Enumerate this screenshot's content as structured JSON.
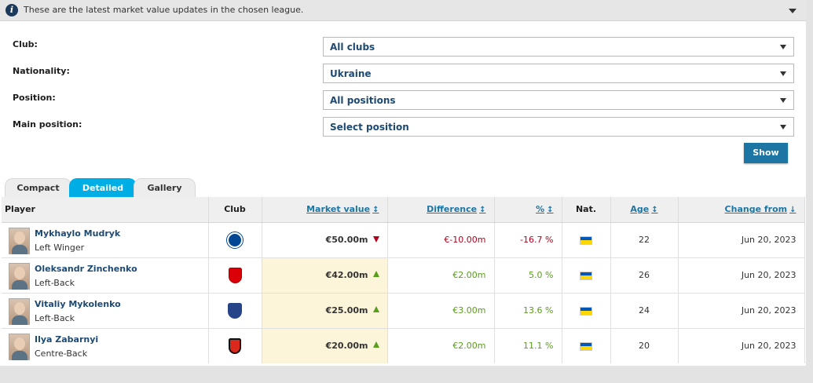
{
  "info": {
    "text": "These are the latest market value updates in the chosen league."
  },
  "filters": {
    "club_label": "Club:",
    "club_value": "All clubs",
    "nationality_label": "Nationality:",
    "nationality_value": "Ukraine",
    "position_label": "Position:",
    "position_value": "All positions",
    "main_position_label": "Main position:",
    "main_position_value": "Select position",
    "show_label": "Show"
  },
  "tabs": [
    {
      "label": "Compact",
      "active": false
    },
    {
      "label": "Detailed",
      "active": true
    },
    {
      "label": "Gallery",
      "active": false
    }
  ],
  "table": {
    "headers": {
      "player": "Player",
      "club": "Club",
      "market_value": "Market value",
      "difference": "Difference",
      "percent": "%",
      "nat": "Nat.",
      "age": "Age",
      "change_from": "Change from"
    },
    "rows": [
      {
        "name": "Mykhaylo Mudryk",
        "position": "Left Winger",
        "club_icon": "chelsea-crest-icon",
        "market_value": "€50.00m",
        "trend": "down",
        "difference": "€-10.00m",
        "percent": "-16.7 %",
        "nationality_icon": "ukraine-flag-icon",
        "age": "22",
        "change_from": "Jun 20, 2023"
      },
      {
        "name": "Oleksandr Zinchenko",
        "position": "Left-Back",
        "club_icon": "arsenal-crest-icon",
        "market_value": "€42.00m",
        "trend": "up",
        "difference": "€2.00m",
        "percent": "5.0 %",
        "nationality_icon": "ukraine-flag-icon",
        "age": "26",
        "change_from": "Jun 20, 2023"
      },
      {
        "name": "Vitaliy Mykolenko",
        "position": "Left-Back",
        "club_icon": "everton-crest-icon",
        "market_value": "€25.00m",
        "trend": "up",
        "difference": "€3.00m",
        "percent": "13.6 %",
        "nationality_icon": "ukraine-flag-icon",
        "age": "24",
        "change_from": "Jun 20, 2023"
      },
      {
        "name": "Ilya Zabarnyi",
        "position": "Centre-Back",
        "club_icon": "bournemouth-crest-icon",
        "market_value": "€20.00m",
        "trend": "up",
        "difference": "€2.00m",
        "percent": "11.1 %",
        "nationality_icon": "ukraine-flag-icon",
        "age": "20",
        "change_from": "Jun 20, 2023"
      }
    ]
  },
  "colors": {
    "accent": "#1d75a3",
    "active_tab": "#00aee6",
    "negative": "#b3001b",
    "positive": "#5a9c1c",
    "highlight_column": "#fdf5d9"
  }
}
